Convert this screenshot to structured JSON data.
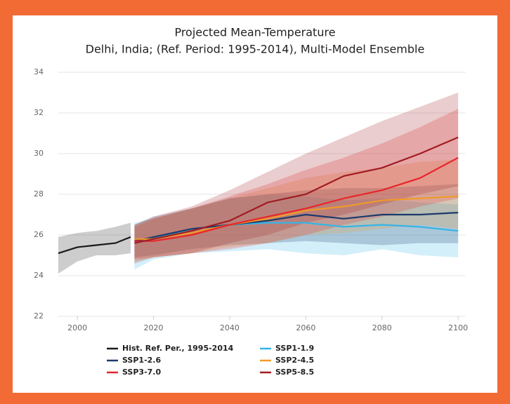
{
  "chart_data": {
    "type": "line",
    "title": "Projected Mean-Temperature",
    "subtitle": "Delhi, India; (Ref. Period: 1995-2014), Multi-Model Ensemble",
    "xlim": [
      1995,
      2102
    ],
    "xticks": [
      2000,
      2020,
      2040,
      2060,
      2080,
      2100
    ],
    "ylim": [
      22,
      34
    ],
    "yticks": [
      22,
      24,
      26,
      28,
      30,
      32,
      34
    ],
    "grid": true,
    "series": [
      {
        "name": "Hist. Ref. Per., 1995-2014",
        "color": "#1a1a1a",
        "x": [
          1995,
          2000,
          2005,
          2010,
          2014
        ],
        "values": [
          25.1,
          25.4,
          25.5,
          25.6,
          25.9
        ],
        "lower": [
          24.1,
          24.7,
          25.0,
          25.0,
          25.1
        ],
        "upper": [
          25.9,
          26.1,
          26.2,
          26.4,
          26.6
        ]
      },
      {
        "name": "SSP1-1.9",
        "color": "#35b4e6",
        "x": [
          2015,
          2020,
          2030,
          2040,
          2050,
          2060,
          2070,
          2080,
          2090,
          2100
        ],
        "values": [
          25.6,
          25.8,
          26.3,
          26.5,
          26.6,
          26.6,
          26.4,
          26.5,
          26.4,
          26.2
        ],
        "lower": [
          24.3,
          24.8,
          25.1,
          25.2,
          25.3,
          25.1,
          25.0,
          25.3,
          25.0,
          24.9
        ],
        "upper": [
          26.6,
          26.8,
          27.3,
          27.8,
          28.0,
          27.9,
          27.7,
          27.8,
          27.6,
          27.5
        ]
      },
      {
        "name": "SSP1-2.6",
        "color": "#1b3a6b",
        "x": [
          2015,
          2020,
          2030,
          2040,
          2050,
          2060,
          2070,
          2080,
          2090,
          2100
        ],
        "values": [
          25.7,
          25.9,
          26.3,
          26.5,
          26.7,
          27.0,
          26.8,
          27.0,
          27.0,
          27.1
        ],
        "lower": [
          24.9,
          25.0,
          25.3,
          25.5,
          25.6,
          25.7,
          25.6,
          25.5,
          25.6,
          25.6
        ],
        "upper": [
          26.5,
          26.9,
          27.3,
          27.8,
          28.0,
          28.2,
          28.3,
          28.3,
          28.4,
          28.5
        ]
      },
      {
        "name": "SSP2-4.5",
        "color": "#f09a28",
        "x": [
          2015,
          2020,
          2030,
          2040,
          2050,
          2060,
          2070,
          2080,
          2090,
          2100
        ],
        "values": [
          25.8,
          25.8,
          26.1,
          26.5,
          26.8,
          27.2,
          27.4,
          27.7,
          27.8,
          27.9
        ],
        "lower": [
          24.7,
          24.9,
          25.1,
          25.4,
          25.6,
          26.0,
          26.1,
          26.3,
          26.5,
          26.3
        ],
        "upper": [
          26.5,
          26.8,
          27.3,
          27.8,
          28.3,
          28.8,
          29.1,
          29.3,
          29.6,
          29.7
        ]
      },
      {
        "name": "SSP3-7.0",
        "color": "#e8262a",
        "x": [
          2015,
          2020,
          2030,
          2040,
          2050,
          2060,
          2070,
          2080,
          2090,
          2100
        ],
        "values": [
          25.7,
          25.7,
          26.0,
          26.5,
          26.9,
          27.3,
          27.8,
          28.2,
          28.8,
          29.8
        ],
        "lower": [
          24.8,
          24.9,
          25.1,
          25.3,
          25.6,
          26.0,
          26.5,
          26.9,
          27.4,
          27.8
        ],
        "upper": [
          26.4,
          26.8,
          27.3,
          27.9,
          28.5,
          29.2,
          29.8,
          30.5,
          31.3,
          32.2
        ]
      },
      {
        "name": "SSP5-8.5",
        "color": "#a11c22",
        "x": [
          2015,
          2020,
          2030,
          2040,
          2050,
          2060,
          2070,
          2080,
          2090,
          2100
        ],
        "values": [
          25.6,
          25.8,
          26.2,
          26.7,
          27.6,
          28.0,
          28.9,
          29.3,
          30.0,
          30.8
        ],
        "lower": [
          24.6,
          24.9,
          25.1,
          25.6,
          26.0,
          26.6,
          27.0,
          27.5,
          28.0,
          28.4
        ],
        "upper": [
          26.5,
          26.9,
          27.4,
          28.2,
          29.1,
          30.0,
          30.8,
          31.6,
          32.3,
          33.0
        ]
      }
    ]
  }
}
